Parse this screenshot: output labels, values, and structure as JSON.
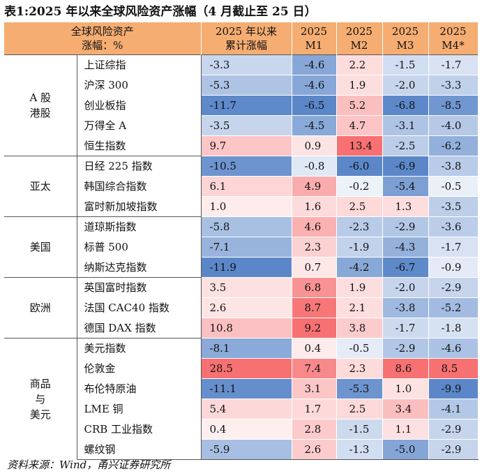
{
  "title": "表1:2025 年以来全球风险资产涨幅（4 月截止至 25 日）",
  "header": {
    "label_line1": "全球风险资产",
    "label_line2": "涨幅：%",
    "col_ytd_line1": "2025 年以来",
    "col_ytd_line2": "累计涨幅",
    "months": [
      {
        "line1": "2025",
        "line2": "M1"
      },
      {
        "line1": "2025",
        "line2": "M2"
      },
      {
        "line1": "2025",
        "line2": "M3"
      },
      {
        "line1": "2025",
        "line2": "M4*"
      }
    ]
  },
  "groups": [
    {
      "region_lines": [
        "A 股",
        "港股"
      ],
      "rows": [
        {
          "name": "上证综指",
          "values": [
            "-3.3",
            "-4.6",
            "2.2",
            "-1.5",
            "-1.7"
          ]
        },
        {
          "name": "沪深 300",
          "values": [
            "-5.3",
            "-4.6",
            "1.9",
            "-2.0",
            "-3.3"
          ]
        },
        {
          "name": "创业板指",
          "values": [
            "-11.7",
            "-6.5",
            "5.2",
            "-6.8",
            "-8.5"
          ]
        },
        {
          "name": "万得全 A",
          "values": [
            "-3.5",
            "-4.5",
            "4.7",
            "-3.1",
            "-4.0"
          ]
        },
        {
          "name": "恒生指数",
          "values": [
            "9.7",
            "0.9",
            "13.4",
            "-2.5",
            "-6.2"
          ]
        }
      ]
    },
    {
      "region_lines": [
        "亚太"
      ],
      "rows": [
        {
          "name": "日经 225 指数",
          "values": [
            "-10.5",
            "-0.8",
            "-6.0",
            "-6.9",
            "-3.8"
          ]
        },
        {
          "name": "韩国综合指数",
          "values": [
            "6.1",
            "4.9",
            "-0.2",
            "-5.4",
            "-0.5"
          ]
        },
        {
          "name": "富时新加坡指数",
          "values": [
            "1.0",
            "1.6",
            "2.5",
            "1.3",
            "-3.5"
          ]
        }
      ]
    },
    {
      "region_lines": [
        "美国"
      ],
      "rows": [
        {
          "name": "道琼斯指数",
          "values": [
            "-5.8",
            "4.6",
            "-2.3",
            "-2.9",
            "-3.6"
          ]
        },
        {
          "name": "标普 500",
          "values": [
            "-7.1",
            "2.3",
            "-1.9",
            "-4.3",
            "-1.7"
          ]
        },
        {
          "name": "纳斯达克指数",
          "values": [
            "-11.9",
            "0.7",
            "-4.2",
            "-6.7",
            "-0.9"
          ]
        }
      ]
    },
    {
      "region_lines": [
        "欧洲"
      ],
      "rows": [
        {
          "name": "英国富时指数",
          "values": [
            "3.5",
            "6.8",
            "1.9",
            "-2.0",
            "-2.9"
          ]
        },
        {
          "name": "法国 CAC40 指数",
          "values": [
            "2.6",
            "8.7",
            "2.1",
            "-3.8",
            "-5.2"
          ]
        },
        {
          "name": "德国 DAX 指数",
          "values": [
            "10.8",
            "9.2",
            "3.8",
            "-1.7",
            "-1.8"
          ]
        }
      ]
    },
    {
      "region_lines": [
        "商品",
        "与",
        "美元"
      ],
      "rows": [
        {
          "name": "美元指数",
          "values": [
            "-8.1",
            "0.4",
            "-0.5",
            "-2.9",
            "-4.6"
          ]
        },
        {
          "name": "伦敦金",
          "values": [
            "28.5",
            "7.4",
            "2.3",
            "8.6",
            "8.5"
          ]
        },
        {
          "name": "布伦特原油",
          "values": [
            "-11.1",
            "3.1",
            "-5.3",
            "1.0",
            "-9.9"
          ]
        },
        {
          "name": "LME 铜",
          "values": [
            "5.4",
            "1.7",
            "2.5",
            "3.4",
            "-4.1"
          ]
        },
        {
          "name": "CRB 工业指数",
          "values": [
            "0.4",
            "2.8",
            "-1.5",
            "1.1",
            "-2.9"
          ]
        },
        {
          "name": "螺纹钢",
          "values": [
            "-5.9",
            "2.6",
            "-1.3",
            "-5.0",
            "-2.9"
          ]
        }
      ]
    }
  ],
  "source": "资料来源：Wind，甬兴证券研究所",
  "colors": {
    "header_bg": "#f5ad72",
    "negative": "#5b87c9",
    "positive": "#f77072",
    "neutral": "#ffffff"
  }
}
